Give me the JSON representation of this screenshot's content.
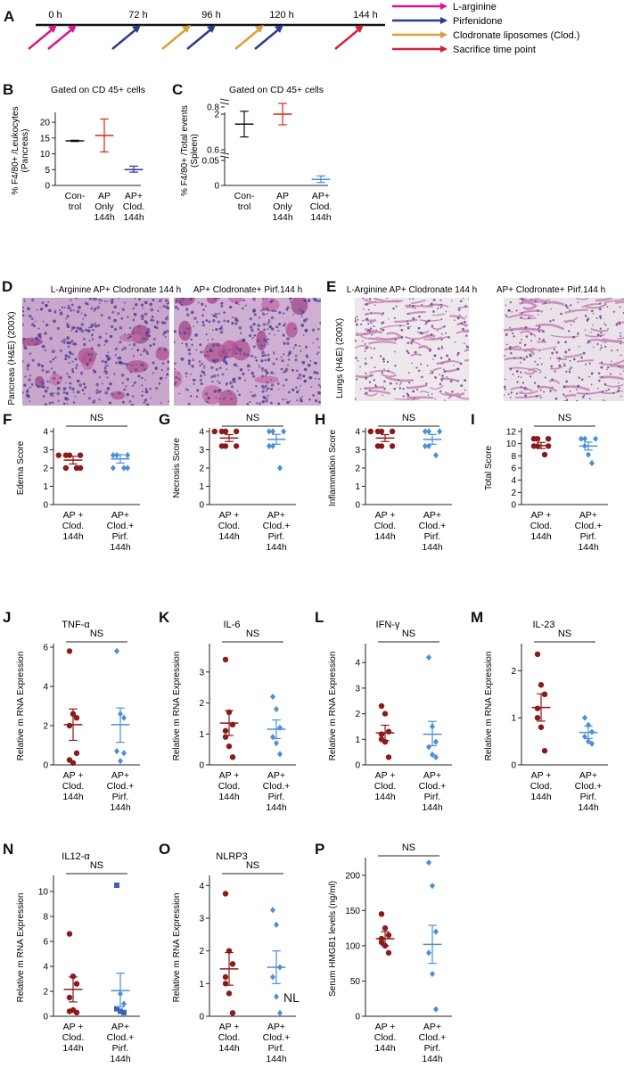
{
  "timeline": {
    "panel": "A",
    "times": [
      "0 h",
      "72 h",
      "96 h",
      "120 h",
      "144 h"
    ],
    "legend": [
      {
        "label": "L-arginine",
        "color": "#d6198c"
      },
      {
        "label": "Pirfenidone",
        "color": "#2e3a8c"
      },
      {
        "label": "Clodronate liposomes (Clod.)",
        "color": "#d9a03a"
      },
      {
        "label": "Sacrifice time point",
        "color": "#d4213b"
      }
    ]
  },
  "histology": [
    {
      "panel": "D",
      "side_label": "Pancreas (H&E) (200X)",
      "titles": [
        "L-Arginine AP+ Clodronate 144 h",
        "AP+ Clodronate+ Pirf.144 h"
      ]
    },
    {
      "panel": "E",
      "side_label": "Lungs (H&E) (200X)",
      "titles": [
        "L-Arginine AP+ Clodronate 144 h",
        "AP+ Clodronate+ Pirf.144 h"
      ]
    }
  ],
  "chart_data": [
    {
      "panel": "B",
      "type": "scatter",
      "title": "Gated on CD 45+ cells",
      "ylabel": "% F4/80+ /Leukocytes (Pancreas)",
      "categories": [
        "Con-trol",
        "AP Only 144h",
        "AP+ Clod. 144h"
      ],
      "colors": [
        "#111111",
        "#e02020",
        "#2e3a8c"
      ],
      "ylim": [
        0,
        22
      ],
      "yticks": [
        "0",
        "5",
        "10",
        "15",
        "20"
      ],
      "ytick_values": [
        0,
        5,
        10,
        15,
        20
      ],
      "series": [
        {
          "mean": 14.1,
          "err": [
            13.9,
            14.3
          ],
          "points": []
        },
        {
          "mean": 15.8,
          "err": [
            10.6,
            21.0
          ],
          "points": []
        },
        {
          "mean": 5.0,
          "err": [
            4.2,
            6.1
          ],
          "points": []
        }
      ]
    },
    {
      "panel": "C",
      "type": "scatter",
      "title": "Gated on CD 45+ cells",
      "ylabel": "% F4/80+ /Total events (Spleen)",
      "categories": [
        "Con-trol",
        "AP Only 144h",
        "AP+ Clod. 144h"
      ],
      "colors": [
        "#111111",
        "#e02020",
        "#4a8fd8"
      ],
      "yticks": [
        "0",
        "0.05",
        "0.6",
        "0.8",
        "2"
      ],
      "broken_axis": true,
      "series": [
        {
          "mean": 0.72,
          "err": [
            0.66,
            0.78
          ],
          "points": []
        },
        {
          "mean": 2.0,
          "err": [
            1.7,
            2.3
          ],
          "points": []
        },
        {
          "mean": 0.012,
          "err": [
            0.006,
            0.019
          ],
          "points": []
        }
      ]
    },
    {
      "panel": "F",
      "type": "scatter",
      "ylabel": "Edema Score",
      "ns": "NS",
      "categories": [
        "AP + Clod. 144h",
        "AP+ Clod.+ Pirf. 144h"
      ],
      "ylim": [
        0,
        4
      ],
      "yticks": [
        "0",
        "1",
        "2",
        "3",
        "4"
      ],
      "ytick_values": [
        0,
        1,
        2,
        3,
        4
      ],
      "series": [
        {
          "mean": 2.43,
          "err": [
            2.22,
            2.64
          ],
          "points": [
            2.7,
            2.7,
            2.0,
            2.0,
            2.0,
            2.7,
            2.7
          ]
        },
        {
          "mean": 2.5,
          "err": [
            2.27,
            2.73
          ],
          "points": [
            2.7,
            2.7,
            2.0,
            2.0,
            2.0,
            2.7
          ]
        }
      ]
    },
    {
      "panel": "G",
      "type": "scatter",
      "ylabel": "Necrosis Score",
      "ns": "NS",
      "categories": [
        "AP + Clod. 144h",
        "AP+ Clod.+ Pirf. 144h"
      ],
      "ylim": [
        0,
        4
      ],
      "yticks": [
        "0",
        "1",
        "2",
        "3",
        "4"
      ],
      "ytick_values": [
        0,
        1,
        2,
        3,
        4
      ],
      "series": [
        {
          "mean": 3.64,
          "err": [
            3.45,
            3.83
          ],
          "points": [
            4,
            4,
            4,
            3.2,
            3.2,
            3.2,
            4
          ]
        },
        {
          "mean": 3.57,
          "err": [
            3.3,
            3.84
          ],
          "points": [
            4,
            4,
            4,
            3.2,
            3.2,
            2.0
          ]
        }
      ]
    },
    {
      "panel": "H",
      "type": "scatter",
      "ylabel": "Inflammation Score",
      "ns": "NS",
      "categories": [
        "AP + Clod. 144h",
        "AP+ Clod.+ Pirf. 144h"
      ],
      "ylim": [
        0,
        4
      ],
      "yticks": [
        "0",
        "1",
        "2",
        "3",
        "4"
      ],
      "ytick_values": [
        0,
        1,
        2,
        3,
        4
      ],
      "series": [
        {
          "mean": 3.64,
          "err": [
            3.45,
            3.83
          ],
          "points": [
            4,
            4,
            4,
            3.2,
            3.2,
            3.2,
            4
          ]
        },
        {
          "mean": 3.57,
          "err": [
            3.3,
            3.84
          ],
          "points": [
            4,
            4,
            4,
            3.2,
            3.2,
            2.7
          ]
        }
      ]
    },
    {
      "panel": "I",
      "type": "scatter",
      "ylabel": "Total Score",
      "ns": "NS",
      "categories": [
        "AP + Clod. 144h",
        "AP+ Clod.+ Pirf. 144h"
      ],
      "ylim": [
        0,
        12
      ],
      "yticks": [
        "0",
        "2",
        "4",
        "6",
        "8",
        "10",
        "12"
      ],
      "ytick_values": [
        0,
        2,
        4,
        6,
        8,
        10,
        12
      ],
      "series": [
        {
          "mean": 9.7,
          "err": [
            9.2,
            10.2
          ],
          "points": [
            10.8,
            10.8,
            10.8,
            9.6,
            9.6,
            8.2,
            9.6
          ]
        },
        {
          "mean": 9.6,
          "err": [
            8.95,
            10.25
          ],
          "points": [
            10.8,
            10.8,
            10.8,
            9.6,
            8.2,
            6.8
          ]
        }
      ]
    },
    {
      "panel": "J",
      "type": "scatter",
      "title": "TNF-α",
      "ylabel": "Relative m RNA Expression",
      "ns": "NS",
      "categories": [
        "AP + Clod. 144h",
        "AP+ Clod.+ Pirf. 144h"
      ],
      "ylim": [
        0,
        6
      ],
      "yticks": [
        "0",
        "2",
        "4",
        "6"
      ],
      "ytick_values": [
        0,
        2,
        4,
        6
      ],
      "series": [
        {
          "mean": 2.05,
          "err": [
            1.25,
            2.85
          ],
          "points": [
            5.8,
            2.6,
            2.4,
            0.25,
            0.1,
            0.6,
            2.0
          ]
        },
        {
          "mean": 2.05,
          "err": [
            1.15,
            2.9
          ],
          "points": [
            5.8,
            2.6,
            2.4,
            0.7,
            0.2,
            0.6
          ]
        }
      ]
    },
    {
      "panel": "K",
      "type": "scatter",
      "title": "IL-6",
      "ylabel": "Relative m RNA Expression",
      "ns": "NS",
      "categories": [
        "AP + Clod. 144h",
        "AP+ Clod.+ Pirf. 144h"
      ],
      "ylim": [
        0,
        3.8
      ],
      "yticks": [
        "0",
        "1",
        "2",
        "3"
      ],
      "ytick_values": [
        0,
        1,
        2,
        3
      ],
      "series": [
        {
          "mean": 1.35,
          "err": [
            0.95,
            1.75
          ],
          "points": [
            3.4,
            1.7,
            1.3,
            0.9,
            0.6,
            0.25,
            1.1
          ]
        },
        {
          "mean": 1.15,
          "err": [
            0.85,
            1.45
          ],
          "points": [
            2.2,
            1.8,
            1.2,
            0.9,
            0.7,
            0.35
          ]
        }
      ]
    },
    {
      "panel": "L",
      "type": "scatter",
      "title": "IFN-γ",
      "ylabel": "Relative m RNA Expression",
      "ns": "NS",
      "categories": [
        "AP + Clod. 144h",
        "AP+ Clod.+ Pirf. 144h"
      ],
      "ylim": [
        0,
        4.6
      ],
      "yticks": [
        "0",
        "1",
        "2",
        "3",
        "4"
      ],
      "ytick_values": [
        0,
        1,
        2,
        3,
        4
      ],
      "series": [
        {
          "mean": 1.25,
          "err": [
            0.95,
            1.55
          ],
          "points": [
            2.3,
            2.0,
            1.3,
            1.0,
            0.9,
            0.3,
            1.2
          ]
        },
        {
          "mean": 1.2,
          "err": [
            0.75,
            1.7
          ],
          "points": [
            4.2,
            1.5,
            0.9,
            0.7,
            0.4,
            0.3
          ]
        }
      ]
    },
    {
      "panel": "M",
      "type": "scatter",
      "title": "IL-23",
      "ylabel": "Relative m RNA Expression",
      "ns": "NS",
      "categories": [
        "AP + Clod. 144h",
        "AP+ Clod.+ Pirf. 144h"
      ],
      "ylim": [
        0,
        2.5
      ],
      "yticks": [
        "0",
        "1",
        "2"
      ],
      "ytick_values": [
        0,
        1,
        2
      ],
      "series": [
        {
          "mean": 1.22,
          "err": [
            0.93,
            1.51
          ],
          "points": [
            2.35,
            1.7,
            1.5,
            1.2,
            0.8,
            0.3,
            1.0
          ]
        },
        {
          "mean": 0.69,
          "err": [
            0.56,
            0.82
          ],
          "points": [
            1.0,
            0.85,
            0.7,
            0.6,
            0.5,
            0.45
          ]
        }
      ]
    },
    {
      "panel": "N",
      "type": "scatter",
      "title": "IL12-α",
      "ylabel": "Relative m RNA Expression",
      "ns": "NS",
      "categories": [
        "AP + Clod. 144h",
        "AP+ Clod.+ Pirf. 144h"
      ],
      "ylim": [
        0,
        11
      ],
      "yticks": [
        "0",
        "2",
        "4",
        "6",
        "8",
        "10"
      ],
      "ytick_values": [
        0,
        2,
        4,
        6,
        8,
        10
      ],
      "series": [
        {
          "mean": 2.15,
          "err": [
            1.15,
            3.15
          ],
          "points": [
            6.6,
            3.2,
            2.6,
            1.5,
            0.5,
            0.3,
            0.4
          ]
        },
        {
          "mean": 2.05,
          "err": [
            0.75,
            3.45
          ],
          "points": [
            10.5,
            1.8,
            1.0,
            0.6,
            0.4,
            0.3
          ]
        }
      ]
    },
    {
      "panel": "O",
      "type": "scatter",
      "title": "NLRP3",
      "ylabel": "Relative m RNA Expression",
      "ns": "NS",
      "annotation": "NL",
      "categories": [
        "AP + Clod. 144h",
        "AP+ Clod.+ Pirf. 144h"
      ],
      "ylim": [
        0,
        4.2
      ],
      "yticks": [
        "0",
        "1",
        "2",
        "3",
        "4"
      ],
      "ytick_values": [
        0,
        1,
        2,
        3,
        4
      ],
      "series": [
        {
          "mean": 1.45,
          "err": [
            0.95,
            1.95
          ],
          "points": [
            3.75,
            2.0,
            1.6,
            1.0,
            0.7,
            0.1,
            1.2
          ]
        },
        {
          "mean": 1.5,
          "err": [
            1.0,
            2.0
          ],
          "points": [
            3.25,
            2.8,
            1.5,
            1.2,
            0.6,
            0.1
          ]
        }
      ]
    },
    {
      "panel": "P",
      "type": "scatter",
      "ylabel": "Serum HMGB1 levels (ng/ml)",
      "ns": "NS",
      "categories": [
        "AP + Clod. 144h",
        "AP+ Clod.+ Pirf. 144h"
      ],
      "ylim": [
        0,
        220
      ],
      "yticks": [
        "0",
        "50",
        "100",
        "150",
        "200"
      ],
      "ytick_values": [
        0,
        50,
        100,
        150,
        200
      ],
      "series": [
        {
          "mean": 110,
          "err": [
            100,
            120
          ],
          "points": [
            145,
            125,
            115,
            110,
            100,
            90,
            105
          ]
        },
        {
          "mean": 102,
          "err": [
            75,
            129
          ],
          "points": [
            218,
            185,
            120,
            90,
            60,
            10
          ]
        }
      ]
    }
  ]
}
